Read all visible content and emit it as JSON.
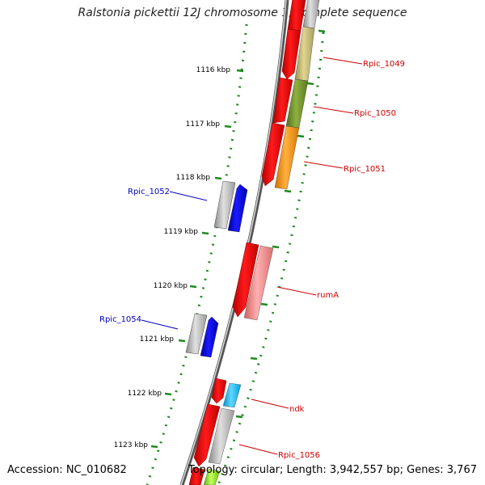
{
  "title": "Ralstonia pickettii 12J chromosome 1, complete sequence",
  "accession": "Accession: NC_010682",
  "topology": "Topology: circular; Length: 3,942,557 bp; Genes: 3,767",
  "ticks": [
    {
      "label": "1116 kbp"
    },
    {
      "label": "1117 kbp"
    },
    {
      "label": "1118 kbp"
    },
    {
      "label": "1119 kbp"
    },
    {
      "label": "1120 kbp"
    },
    {
      "label": "1121 kbp"
    },
    {
      "label": "1122 kbp"
    },
    {
      "label": "1123 kbp"
    }
  ],
  "gene_labels": [
    {
      "name": "Rpic_1049",
      "color": "#cc0000"
    },
    {
      "name": "Rpic_1050",
      "color": "#cc0000"
    },
    {
      "name": "Rpic_1051",
      "color": "#cc0000"
    },
    {
      "name": "Rpic_1052",
      "color": "#0000bb"
    },
    {
      "name": "rumA",
      "color": "#cc0000"
    },
    {
      "name": "Rpic_1054",
      "color": "#0000bb"
    },
    {
      "name": "ndk",
      "color": "#cc0000"
    },
    {
      "name": "Rpic_1056",
      "color": "#cc0000"
    }
  ],
  "colors": {
    "forward_cds": "#ff0000",
    "reverse_cds": "#0000ff",
    "tick": "#1e8a1e",
    "backbone": "#888888"
  }
}
